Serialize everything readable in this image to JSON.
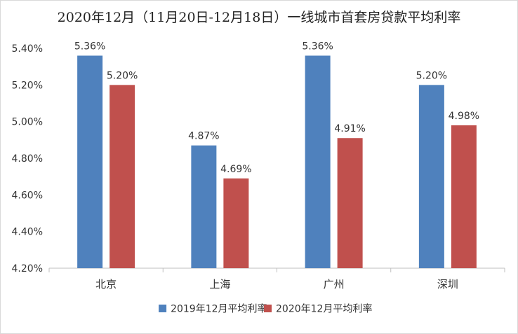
{
  "chart_data": {
    "type": "bar",
    "title": "2020年12月（11月20日-12月18日）一线城市首套房贷款平均利率",
    "categories": [
      "北京",
      "上海",
      "广州",
      "深圳"
    ],
    "series": [
      {
        "name": "2019年12月平均利率",
        "values": [
          5.36,
          4.87,
          5.36,
          5.2
        ],
        "labels": [
          "5.36%",
          "4.87%",
          "5.36%",
          "5.20%"
        ],
        "color": "#4F81BD"
      },
      {
        "name": "2020年12月平均利率",
        "values": [
          5.2,
          4.69,
          4.91,
          4.98
        ],
        "labels": [
          "5.20%",
          "4.69%",
          "4.91%",
          "4.98%"
        ],
        "color": "#C0504D"
      }
    ],
    "ylim": [
      4.2,
      5.4
    ],
    "yticks": [
      4.2,
      4.4,
      4.6,
      4.8,
      5.0,
      5.2,
      5.4
    ],
    "ytick_labels": [
      "4.20%",
      "4.40%",
      "4.60%",
      "4.80%",
      "5.00%",
      "5.20%",
      "5.40%"
    ],
    "grid": false,
    "legend_position": "bottom"
  }
}
